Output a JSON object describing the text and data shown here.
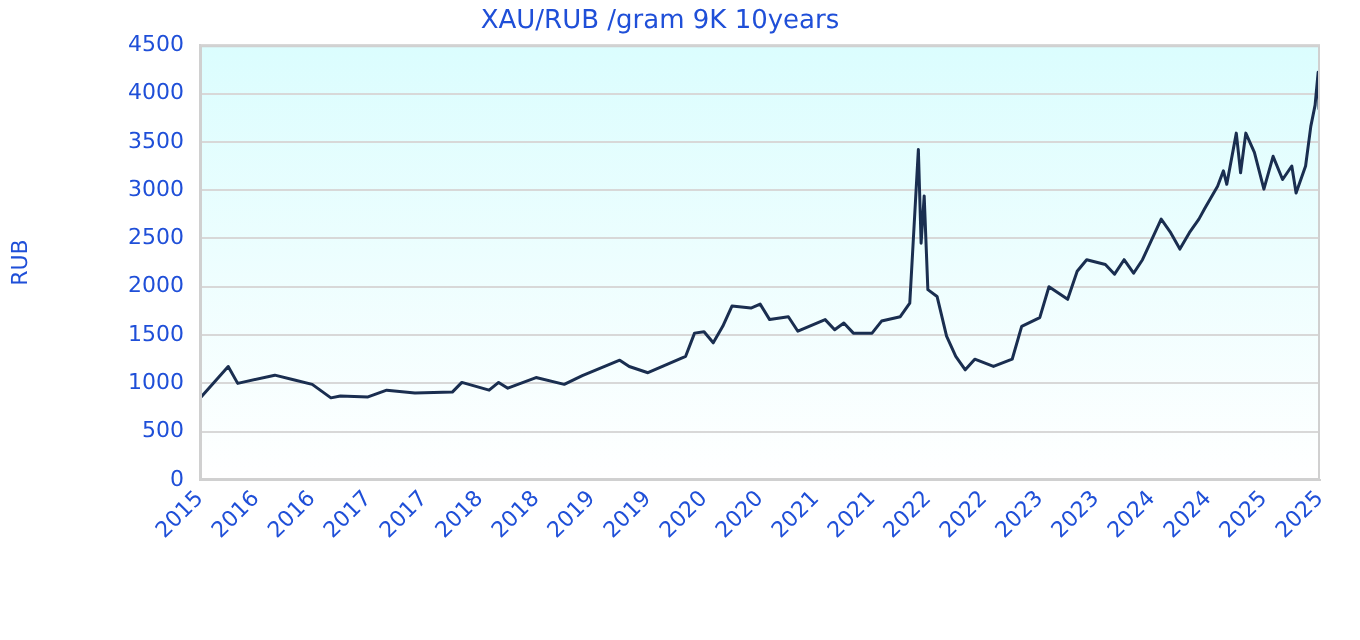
{
  "chart_data": {
    "type": "line",
    "title": "XAU/RUB /gram 9K 10years",
    "ylabel": "RUB",
    "x": [
      "2015-10",
      "2016-01",
      "2016-02",
      "2016-06",
      "2016-08",
      "2016-10",
      "2016-12",
      "2017-01",
      "2017-04",
      "2017-06",
      "2017-09",
      "2018-01",
      "2018-02",
      "2018-05",
      "2018-06",
      "2018-07",
      "2018-10",
      "2019-01",
      "2019-03",
      "2019-07",
      "2019-08",
      "2019-10",
      "2020-02",
      "2020-03",
      "2020-04",
      "2020-05",
      "2020-06",
      "2020-07",
      "2020-09",
      "2020-10",
      "2020-11",
      "2021-01",
      "2021-02",
      "2021-05",
      "2021-06",
      "2021-07",
      "2021-08",
      "2021-10",
      "2021-11",
      "2022-01",
      "2022-02",
      "2022-03-01",
      "2022-03-10",
      "2022-03-20",
      "2022-04",
      "2022-05",
      "2022-06",
      "2022-07",
      "2022-08",
      "2022-09",
      "2022-11",
      "2023-01",
      "2023-02",
      "2023-04",
      "2023-05",
      "2023-07",
      "2023-08",
      "2023-09",
      "2023-11",
      "2023-12",
      "2024-01",
      "2024-02",
      "2024-03",
      "2024-05",
      "2024-06",
      "2024-07",
      "2024-08",
      "2024-09",
      "2024-09-20",
      "2024-11",
      "2024-11-20",
      "2024-12",
      "2025-01",
      "2025-01-15",
      "2025-02",
      "2025-03",
      "2025-04",
      "2025-05",
      "2025-06",
      "2025-07",
      "2025-07-15",
      "2025-08-15",
      "2025-09-01",
      "2025-09-15",
      "2025-09-25",
      "2025-09-28",
      "2025-10"
    ],
    "series": [
      {
        "color": "#1a2e50",
        "values": [
          845,
          1175,
          1000,
          1085,
          1037,
          990,
          850,
          870,
          860,
          930,
          900,
          910,
          1010,
          930,
          1010,
          950,
          1060,
          990,
          1080,
          1240,
          1175,
          1110,
          1280,
          1520,
          1535,
          1420,
          1590,
          1800,
          1780,
          1820,
          1660,
          1690,
          1540,
          1660,
          1555,
          1625,
          1520,
          1520,
          1645,
          1690,
          1830,
          3420,
          2450,
          2940,
          1970,
          1900,
          1490,
          1280,
          1140,
          1250,
          1175,
          1250,
          1590,
          1680,
          2000,
          1870,
          2160,
          2280,
          2230,
          2130,
          2280,
          2140,
          2280,
          2700,
          2560,
          2390,
          2560,
          2700,
          2810,
          3040,
          3200,
          3060,
          3590,
          3180,
          3590,
          3390,
          3010,
          3350,
          3110,
          3250,
          2970,
          3250,
          3660,
          3880,
          4220,
          3840,
          4110
        ]
      }
    ],
    "xlim": [
      "2015-10",
      "2025-10"
    ],
    "xticks": [
      {
        "value": "2015-10",
        "label": "2015"
      },
      {
        "value": "2016-04",
        "label": "2016"
      },
      {
        "value": "2016-10",
        "label": "2016"
      },
      {
        "value": "2017-04",
        "label": "2017"
      },
      {
        "value": "2017-10",
        "label": "2017"
      },
      {
        "value": "2018-04",
        "label": "2018"
      },
      {
        "value": "2018-10",
        "label": "2018"
      },
      {
        "value": "2019-04",
        "label": "2019"
      },
      {
        "value": "2019-10",
        "label": "2019"
      },
      {
        "value": "2020-04",
        "label": "2020"
      },
      {
        "value": "2020-10",
        "label": "2020"
      },
      {
        "value": "2021-04",
        "label": "2021"
      },
      {
        "value": "2021-10",
        "label": "2021"
      },
      {
        "value": "2022-04",
        "label": "2022"
      },
      {
        "value": "2022-10",
        "label": "2022"
      },
      {
        "value": "2023-04",
        "label": "2023"
      },
      {
        "value": "2023-10",
        "label": "2023"
      },
      {
        "value": "2024-04",
        "label": "2024"
      },
      {
        "value": "2024-10",
        "label": "2024"
      },
      {
        "value": "2025-04",
        "label": "2025"
      },
      {
        "value": "2025-10",
        "label": "2025"
      }
    ],
    "ylim": [
      0,
      4500
    ],
    "yticks": [
      0,
      500,
      1000,
      1500,
      2000,
      2500,
      3000,
      3500,
      4000,
      4500
    ],
    "grid": "y",
    "marker": "none",
    "line_style": "solid",
    "legend": false
  }
}
